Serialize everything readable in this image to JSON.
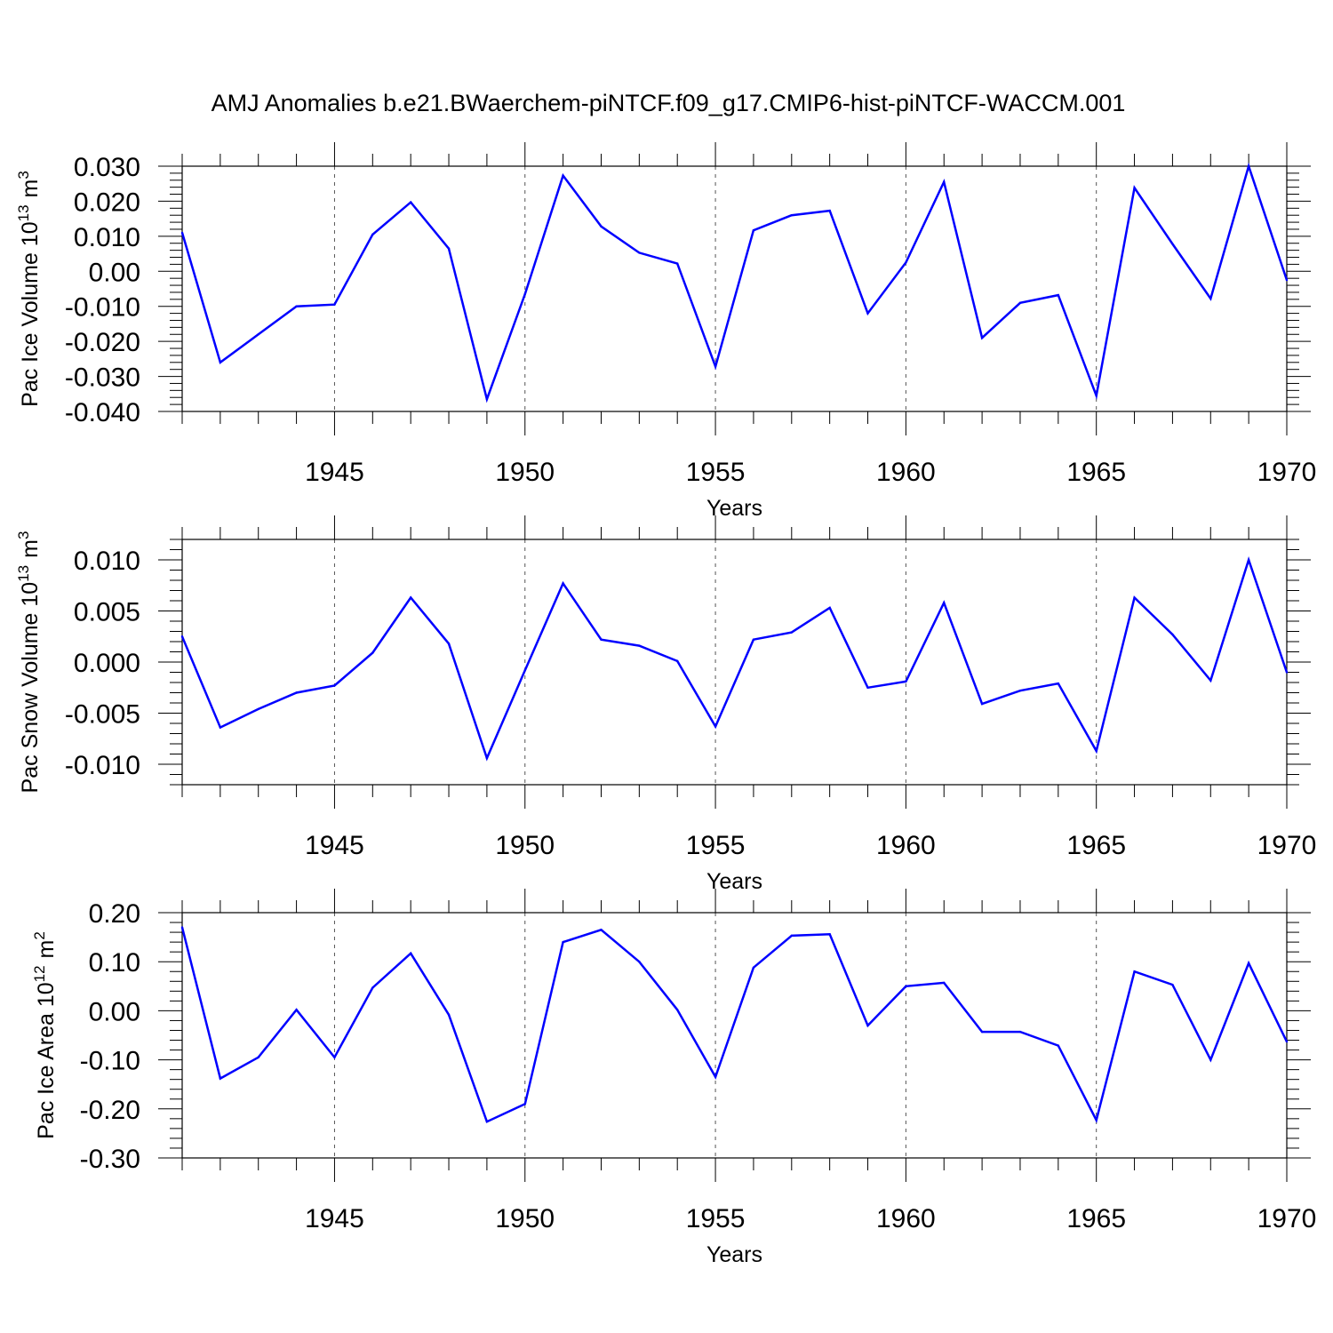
{
  "title": "AMJ Anomalies b.e21.BWaerchem-piNTCF.f09_g17.CMIP6-hist-piNTCF-WACCM.001",
  "line_color": "#0000ff",
  "chart_data": [
    {
      "type": "line",
      "panel": "top",
      "ylabel": "Pac Ice Volume 10",
      "ylabel_exp": "13",
      "ylabel_unit": "m",
      "ylabel_unit_exp": "3",
      "xlabel": "Years",
      "xlim": [
        1941,
        1970
      ],
      "ylim": [
        -0.04,
        0.03
      ],
      "xticks": [
        1945,
        1950,
        1955,
        1960,
        1965,
        1970
      ],
      "xtick_labels": [
        "1945",
        "1950",
        "1955",
        "1960",
        "1965",
        "1970"
      ],
      "yticks": [
        0.03,
        0.02,
        0.01,
        0.0,
        -0.01,
        -0.02,
        -0.03,
        -0.04
      ],
      "ytick_labels": [
        "0.030",
        "0.020",
        "0.010",
        "0.00",
        "-0.010",
        "-0.020",
        "-0.030",
        "-0.040"
      ],
      "x": [
        1941,
        1942,
        1943,
        1944,
        1945,
        1946,
        1947,
        1948,
        1949,
        1950,
        1951,
        1952,
        1953,
        1954,
        1955,
        1956,
        1957,
        1958,
        1959,
        1960,
        1961,
        1962,
        1963,
        1964,
        1965,
        1966,
        1967,
        1968,
        1969,
        1970
      ],
      "values": [
        0.011,
        -0.026,
        -0.018,
        -0.01,
        -0.0095,
        0.0105,
        0.0197,
        0.0065,
        -0.0365,
        -0.0065,
        0.0273,
        0.0128,
        0.0053,
        0.0022,
        -0.0272,
        0.0117,
        0.016,
        0.0173,
        -0.012,
        0.0025,
        0.0255,
        -0.019,
        -0.009,
        -0.0068,
        -0.0355,
        0.0238,
        0.0078,
        -0.0078,
        0.03,
        -0.0025
      ]
    },
    {
      "type": "line",
      "panel": "middle",
      "ylabel": "Pac Snow Volume 10",
      "ylabel_exp": "13",
      "ylabel_unit": "m",
      "ylabel_unit_exp": "3",
      "xlabel": "Years",
      "xlim": [
        1941,
        1970
      ],
      "ylim": [
        -0.012,
        0.012
      ],
      "xticks": [
        1945,
        1950,
        1955,
        1960,
        1965,
        1970
      ],
      "xtick_labels": [
        "1945",
        "1950",
        "1955",
        "1960",
        "1965",
        "1970"
      ],
      "yticks": [
        0.01,
        0.005,
        0.0,
        -0.005,
        -0.01
      ],
      "ytick_labels": [
        "0.010",
        "0.005",
        "0.000",
        "-0.005",
        "-0.010"
      ],
      "x": [
        1941,
        1942,
        1943,
        1944,
        1945,
        1946,
        1947,
        1948,
        1949,
        1950,
        1951,
        1952,
        1953,
        1954,
        1955,
        1956,
        1957,
        1958,
        1959,
        1960,
        1961,
        1962,
        1963,
        1964,
        1965,
        1966,
        1967,
        1968,
        1969,
        1970
      ],
      "values": [
        0.0025,
        -0.0064,
        -0.0046,
        -0.003,
        -0.0023,
        0.0009,
        0.0063,
        0.0018,
        -0.0094,
        -0.0008,
        0.0077,
        0.0022,
        0.0016,
        0.0001,
        -0.0063,
        0.0022,
        0.0029,
        0.0053,
        -0.0025,
        -0.0019,
        0.0058,
        -0.0041,
        -0.0028,
        -0.0021,
        -0.0087,
        0.0063,
        0.0027,
        -0.0018,
        0.01,
        -0.001
      ]
    },
    {
      "type": "line",
      "panel": "bottom",
      "ylabel": "Pac Ice Area 10",
      "ylabel_exp": "12",
      "ylabel_unit": "m",
      "ylabel_unit_exp": "2",
      "xlabel": "Years",
      "xlim": [
        1941,
        1970
      ],
      "ylim": [
        -0.3,
        0.2
      ],
      "xticks": [
        1945,
        1950,
        1955,
        1960,
        1965,
        1970
      ],
      "xtick_labels": [
        "1945",
        "1950",
        "1955",
        "1960",
        "1965",
        "1970"
      ],
      "yticks": [
        0.2,
        0.1,
        0.0,
        -0.1,
        -0.2,
        -0.3
      ],
      "ytick_labels": [
        "0.20",
        "0.10",
        "0.00",
        "-0.10",
        "-0.20",
        "-0.30"
      ],
      "x": [
        1941,
        1942,
        1943,
        1944,
        1945,
        1946,
        1947,
        1948,
        1949,
        1950,
        1951,
        1952,
        1953,
        1954,
        1955,
        1956,
        1957,
        1958,
        1959,
        1960,
        1961,
        1962,
        1963,
        1964,
        1965,
        1966,
        1967,
        1968,
        1969,
        1970
      ],
      "values": [
        0.17,
        -0.138,
        -0.095,
        0.002,
        -0.095,
        0.047,
        0.117,
        -0.008,
        -0.226,
        -0.19,
        0.14,
        0.165,
        0.1,
        0.002,
        -0.135,
        0.088,
        0.153,
        0.156,
        -0.03,
        0.05,
        0.057,
        -0.043,
        -0.043,
        -0.071,
        -0.223,
        0.08,
        0.053,
        -0.1,
        0.097,
        -0.063
      ]
    }
  ]
}
